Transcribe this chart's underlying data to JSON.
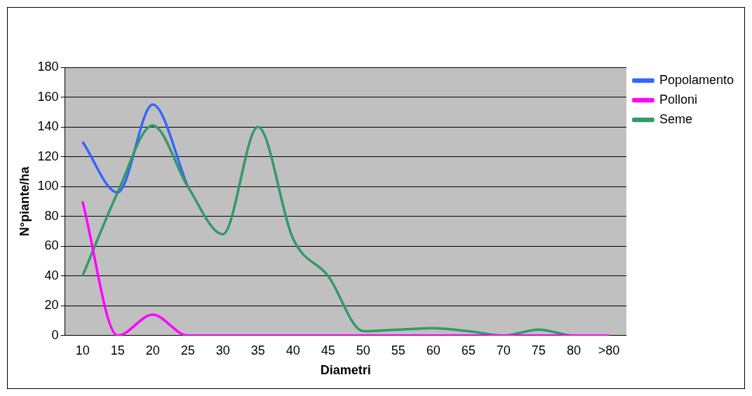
{
  "chart_data": {
    "type": "line",
    "xlabel": "Diametri",
    "ylabel": "N°piante/ha",
    "categories": [
      "10",
      "15",
      "20",
      "25",
      "30",
      "35",
      "40",
      "45",
      "50",
      "55",
      "60",
      "65",
      "70",
      "75",
      "80",
      ">80"
    ],
    "series": [
      {
        "name": "Popolamento",
        "color": "#3366ff",
        "values": [
          130,
          96,
          155,
          100,
          null,
          null,
          null,
          null,
          null,
          null,
          null,
          null,
          null,
          null,
          null,
          null
        ]
      },
      {
        "name": "Polloni",
        "color": "#ff00ff",
        "values": [
          90,
          0,
          14,
          0,
          0,
          0,
          0,
          0,
          0,
          0,
          0,
          0,
          0,
          0,
          0,
          0
        ]
      },
      {
        "name": "Seme",
        "color": "#339966",
        "values": [
          40,
          96,
          141,
          100,
          68,
          140,
          65,
          40,
          3,
          4,
          5,
          3,
          0,
          4,
          0,
          0
        ]
      }
    ],
    "ylim": [
      0,
      180
    ],
    "yticks": [
      0,
      20,
      40,
      60,
      80,
      100,
      120,
      140,
      160,
      180
    ],
    "grid": "y",
    "legend": "top right",
    "marker": "none",
    "line_style": "solid"
  }
}
